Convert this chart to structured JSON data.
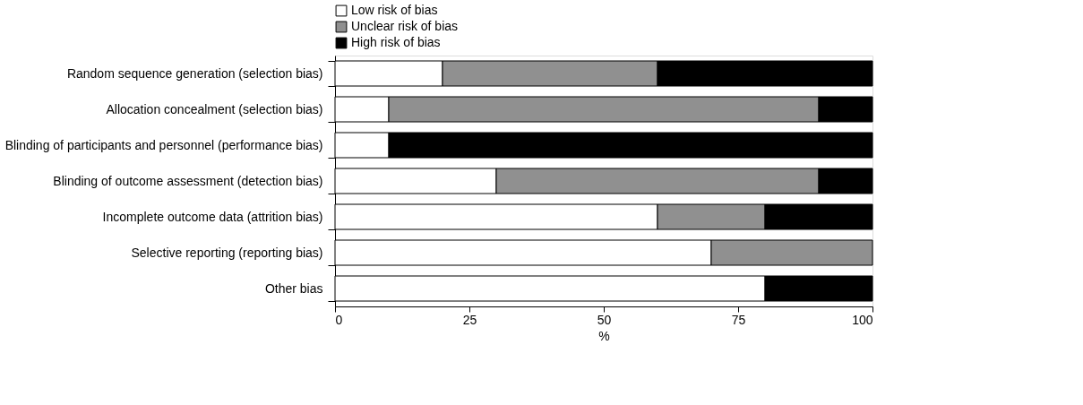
{
  "chart_data": {
    "type": "bar",
    "orientation": "horizontal",
    "stacked": true,
    "xlabel": "%",
    "categories": [
      "Random sequence generation (selection bias)",
      "Allocation concealment (selection bias)",
      "Blinding of participants and personnel (performance bias)",
      "Blinding of outcome assessment (detection bias)",
      "Incomplete outcome data (attrition bias)",
      "Selective reporting (reporting bias)",
      "Other bias"
    ],
    "series": [
      {
        "name": "Low risk of bias",
        "color": "#ffffff",
        "values": [
          20,
          10,
          10,
          30,
          60,
          70,
          80
        ]
      },
      {
        "name": "Unclear risk of bias",
        "color": "#909090",
        "values": [
          40,
          80,
          null,
          60,
          20,
          30,
          null
        ]
      },
      {
        "name": "High risk of bias",
        "color": "#000000",
        "values": [
          40,
          10,
          90,
          10,
          20,
          null,
          20
        ]
      }
    ],
    "xlim": [
      0,
      100
    ],
    "xticks": [
      0,
      25,
      50,
      75,
      100
    ],
    "grid": false,
    "legend": "top"
  }
}
